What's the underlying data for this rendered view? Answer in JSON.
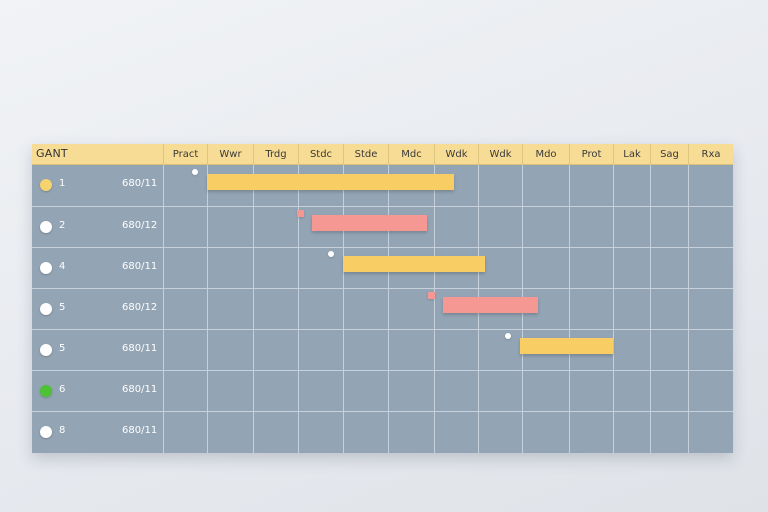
{
  "colors": {
    "header_bg": "#f7dc95",
    "grid_bg": "#93a4b4",
    "bar_yellow": "#f8cd63",
    "bar_pink": "#f59793",
    "dot_white": "#ffffff",
    "dot_yellow": "#f6d36f",
    "dot_green": "#4cc234"
  },
  "header": {
    "title": "GANT",
    "columns": [
      "Pract",
      "Wwr",
      "Trdg",
      "Stdc",
      "Stde",
      "Mdc",
      "Wdk",
      "Wdk",
      "Mdo",
      "Prot",
      "Lak",
      "Sag",
      "Rxa"
    ]
  },
  "rows": [
    {
      "num": "1",
      "code": "680/11",
      "dot": "yellow"
    },
    {
      "num": "2",
      "code": "680/12",
      "dot": "white"
    },
    {
      "num": "4",
      "code": "680/11",
      "dot": "white"
    },
    {
      "num": "5",
      "code": "680/12",
      "dot": "white"
    },
    {
      "num": "5",
      "code": "680/11",
      "dot": "white"
    },
    {
      "num": "6",
      "code": "680/11",
      "dot": "green"
    },
    {
      "num": "8",
      "code": "680/11",
      "dot": "white"
    }
  ],
  "tasks": [
    {
      "start": 1.0,
      "end": 6.45,
      "color": "yellow"
    },
    {
      "start": 3.3,
      "end": 5.85,
      "color": "pink"
    },
    {
      "start": 4.0,
      "end": 7.15,
      "color": "yellow"
    },
    {
      "start": 6.2,
      "end": 8.35,
      "color": "pink"
    },
    {
      "start": 7.95,
      "end": 10.0,
      "color": "yellow"
    }
  ]
}
